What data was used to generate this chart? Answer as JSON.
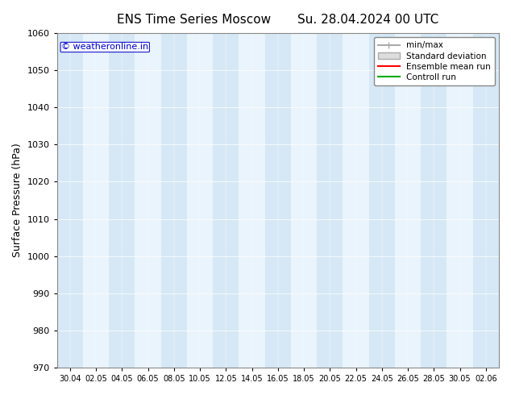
{
  "title_left": "ENS Time Series Moscow",
  "title_right": "Su. 28.04.2024 00 UTC",
  "ylabel": "Surface Pressure (hPa)",
  "ylim": [
    970,
    1060
  ],
  "yticks": [
    970,
    980,
    990,
    1000,
    1010,
    1020,
    1030,
    1040,
    1050,
    1060
  ],
  "xtick_labels": [
    "30.04",
    "02.05",
    "04.05",
    "06.05",
    "08.05",
    "10.05",
    "12.05",
    "14.05",
    "16.05",
    "18.05",
    "20.05",
    "22.05",
    "24.05",
    "26.05",
    "28.05",
    "30.05",
    "02.06"
  ],
  "num_xticks": 17,
  "band_color": "#d6e8f5",
  "bg_color": "#ffffff",
  "plot_bg_color": "#eaf4fc",
  "watermark": "© weatheronline.in",
  "watermark_color": "#0000cc",
  "legend_labels": [
    "min/max",
    "Standard deviation",
    "Ensemble mean run",
    "Controll run"
  ],
  "legend_colors": [
    "#aaaaaa",
    "#cccccc",
    "#ff0000",
    "#00aa00"
  ],
  "figsize": [
    6.34,
    4.9
  ],
  "dpi": 100
}
